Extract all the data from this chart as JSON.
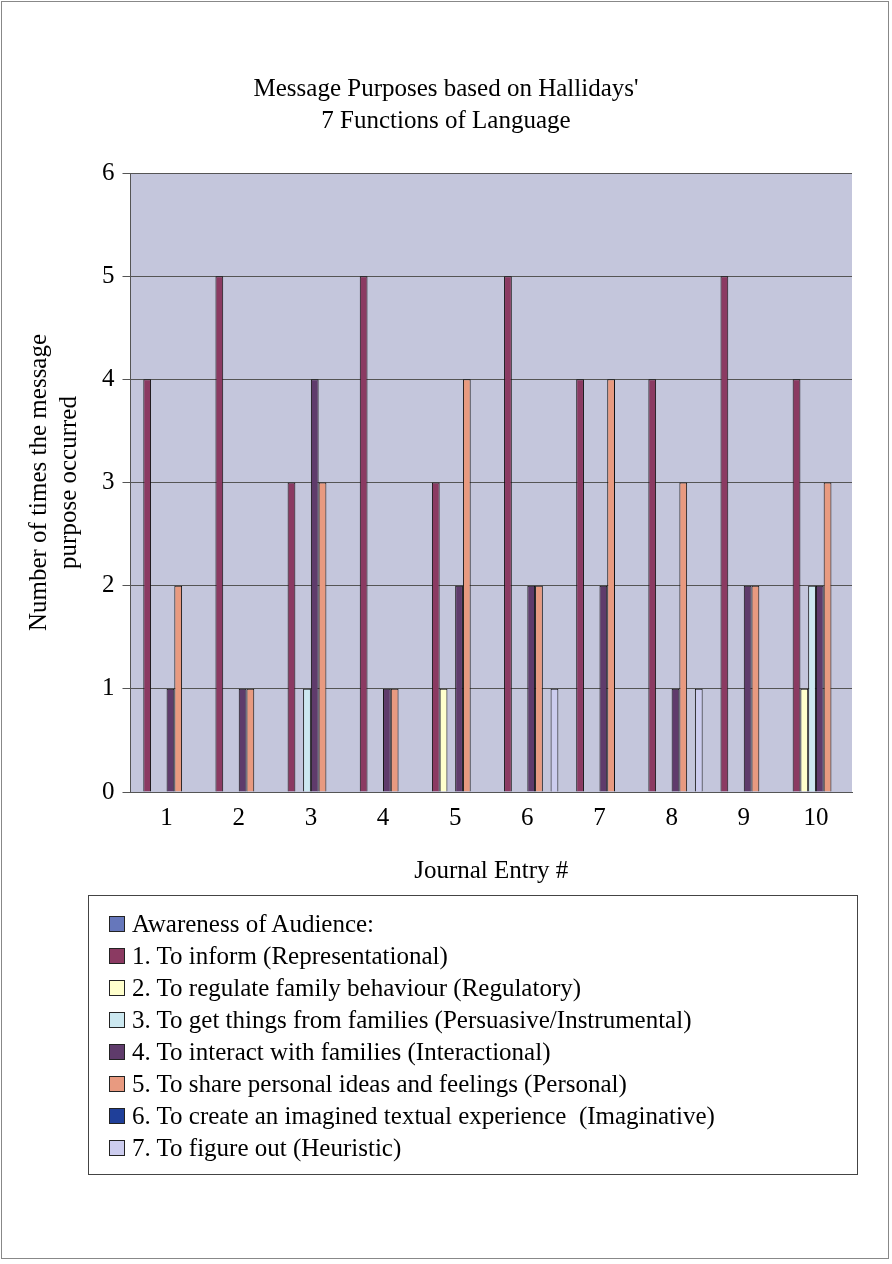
{
  "chart_data": {
    "type": "bar",
    "title": "Message Purposes based on Hallidays'\n7 Functions of Language",
    "xlabel": "Journal Entry #",
    "ylabel": "Number of times the message\npurpose occurred",
    "categories": [
      "1",
      "2",
      "3",
      "4",
      "5",
      "6",
      "7",
      "8",
      "9",
      "10"
    ],
    "series": [
      {
        "name": "Awareness of Audience:",
        "color": "#6677bb",
        "values": [
          0,
          0,
          0,
          0,
          0,
          0,
          0,
          0,
          0,
          0
        ]
      },
      {
        "name": "1. To inform (Representational)",
        "color": "#8b3a62",
        "values": [
          4,
          5,
          3,
          5,
          3,
          5,
          4,
          4,
          5,
          4
        ]
      },
      {
        "name": "2. To regulate family behaviour (Regulatory)",
        "color": "#ffffcc",
        "values": [
          0,
          0,
          0,
          0,
          1,
          0,
          0,
          0,
          0,
          1
        ]
      },
      {
        "name": "3. To get things from families (Persuasive/Instrumental)",
        "color": "#cce8f0",
        "values": [
          0,
          0,
          1,
          0,
          0,
          0,
          0,
          0,
          0,
          2
        ]
      },
      {
        "name": "4. To interact with families (Interactional)",
        "color": "#5f3b6b",
        "values": [
          1,
          1,
          4,
          1,
          2,
          2,
          2,
          1,
          2,
          2
        ]
      },
      {
        "name": "5. To share personal ideas and feelings (Personal)",
        "color": "#e89a80",
        "values": [
          2,
          1,
          3,
          1,
          4,
          2,
          4,
          3,
          2,
          3
        ]
      },
      {
        "name": "6. To create an imagined textual experience  (Imaginative)",
        "color": "#1f3f99",
        "values": [
          0,
          0,
          0,
          0,
          0,
          0,
          0,
          0,
          0,
          0
        ]
      },
      {
        "name": "7. To figure out (Heuristic)",
        "color": "#ccccee",
        "values": [
          0,
          0,
          0,
          0,
          0,
          1,
          0,
          1,
          0,
          0
        ]
      }
    ],
    "ylim": [
      0,
      6
    ],
    "yticks": [
      0,
      1,
      2,
      3,
      4,
      5,
      6
    ],
    "grid": "y",
    "legend": "bottom"
  }
}
